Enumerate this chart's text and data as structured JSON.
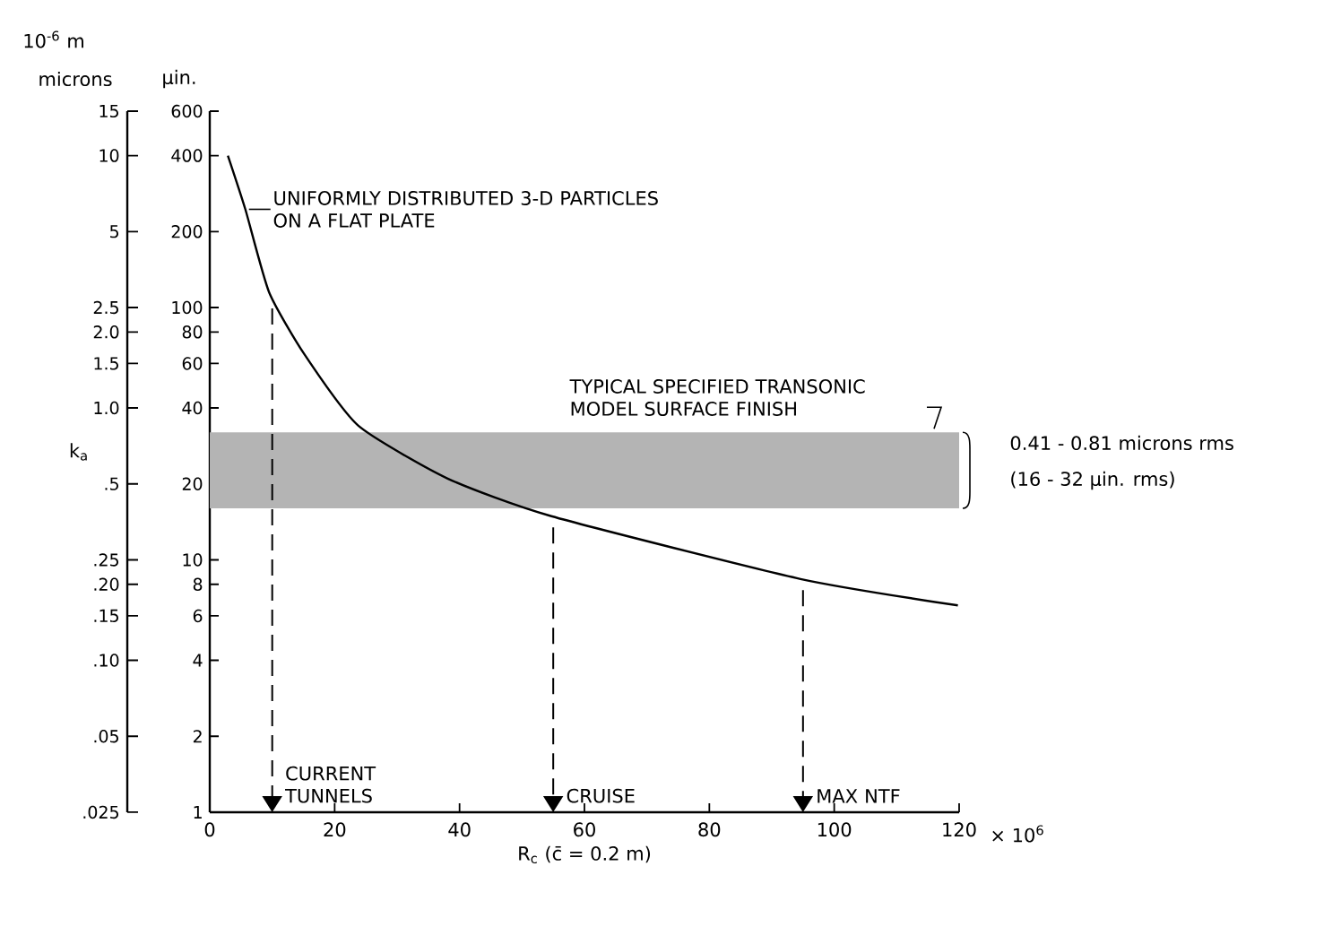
{
  "chart_data": {
    "type": "line",
    "xlabel": "R$_{c}$ (c̄ = 0.2 m)",
    "ylabel": "k$_{a}$",
    "series": [
      {
        "name": "UNIFORMLY DISTRIBUTED 3-D PARTICLES ON A FLAT PLATE",
        "color": "#000000",
        "x": [
          2.9,
          5.7,
          9.5,
          15.2,
          23.8,
          38.1,
          54.7,
          94.6,
          119.8
        ],
        "values": [
          400,
          245,
          115,
          65,
          34,
          21,
          14.9,
          8.4,
          6.6
        ]
      }
    ],
    "xlim": [
      0,
      120
    ],
    "xticks": [
      0,
      20,
      40,
      60,
      80,
      100,
      120
    ],
    "ylim": [
      1,
      600
    ],
    "yticks": [
      1,
      2,
      4,
      6,
      8,
      10,
      20,
      40,
      60,
      80,
      100,
      200,
      400,
      600
    ],
    "log": "y",
    "bands": [
      {
        "axis": "y",
        "from": 16,
        "to": 32,
        "label": "TYPICAL SPECIFIED TRANSONIC MODEL SURFACE FINISH",
        "color": "#b4b4b4"
      }
    ],
    "ref_lines": [
      {
        "axis": "x",
        "value": 10,
        "label": "CURRENT TUNNELS",
        "line_style": "dashed"
      },
      {
        "axis": "x",
        "value": 55,
        "label": "CRUISE",
        "line_style": "dashed"
      },
      {
        "axis": "x",
        "value": 95,
        "label": "MAX NTF",
        "line_style": "dashed"
      }
    ],
    "annotations": [
      "microns",
      "µin.",
      "10$^{-6}$ m",
      "0.41 - 0.81 microns rms",
      "(16 - 32 µin. rms)",
      "× 10$^{6}$",
      ".025",
      ".05",
      ".10",
      ".15",
      ".20",
      ".25",
      ".5",
      "1.0",
      "1.5",
      "2.0",
      "2.5",
      "5",
      "10",
      "15"
    ]
  }
}
